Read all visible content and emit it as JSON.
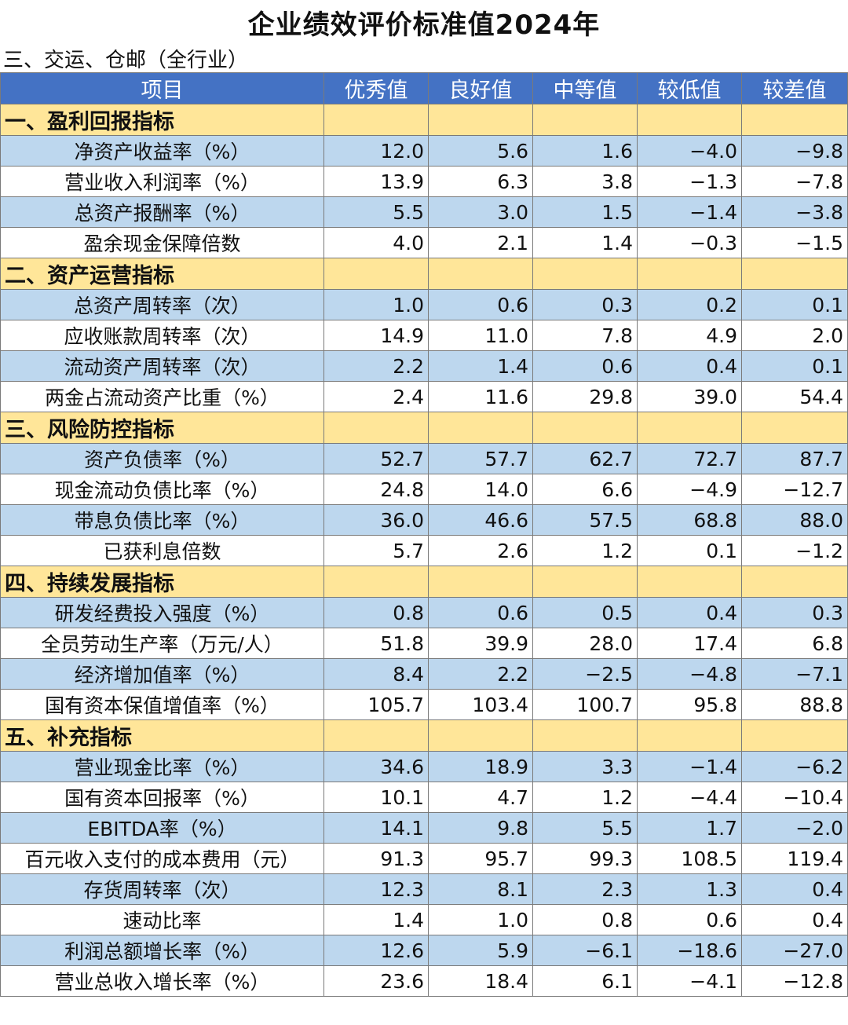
{
  "title": "企业绩效评价标准值2024年",
  "subtitle": "三、交运、仓邮（全行业）",
  "headers": [
    "项目",
    "优秀值",
    "良好值",
    "中等值",
    "较低值",
    "较差值"
  ],
  "sections": [
    {
      "label": "一、盈利回报指标",
      "rows": [
        {
          "name": "净资产收益率（%）",
          "values": [
            "12.0",
            "5.6",
            "1.6",
            "−4.0",
            "−9.8"
          ]
        },
        {
          "name": "营业收入利润率（%）",
          "values": [
            "13.9",
            "6.3",
            "3.8",
            "−1.3",
            "−7.8"
          ]
        },
        {
          "name": "总资产报酬率（%）",
          "values": [
            "5.5",
            "3.0",
            "1.5",
            "−1.4",
            "−3.8"
          ]
        },
        {
          "name": "盈余现金保障倍数",
          "values": [
            "4.0",
            "2.1",
            "1.4",
            "−0.3",
            "−1.5"
          ]
        }
      ]
    },
    {
      "label": "二、资产运营指标",
      "rows": [
        {
          "name": "总资产周转率（次）",
          "values": [
            "1.0",
            "0.6",
            "0.3",
            "0.2",
            "0.1"
          ]
        },
        {
          "name": "应收账款周转率（次）",
          "values": [
            "14.9",
            "11.0",
            "7.8",
            "4.9",
            "2.0"
          ]
        },
        {
          "name": "流动资产周转率（次）",
          "values": [
            "2.2",
            "1.4",
            "0.6",
            "0.4",
            "0.1"
          ]
        },
        {
          "name": "两金占流动资产比重（%）",
          "values": [
            "2.4",
            "11.6",
            "29.8",
            "39.0",
            "54.4"
          ]
        }
      ]
    },
    {
      "label": "三、风险防控指标",
      "rows": [
        {
          "name": "资产负债率（%）",
          "values": [
            "52.7",
            "57.7",
            "62.7",
            "72.7",
            "87.7"
          ]
        },
        {
          "name": "现金流动负债比率（%）",
          "values": [
            "24.8",
            "14.0",
            "6.6",
            "−4.9",
            "−12.7"
          ]
        },
        {
          "name": "带息负债比率（%）",
          "values": [
            "36.0",
            "46.6",
            "57.5",
            "68.8",
            "88.0"
          ]
        },
        {
          "name": "已获利息倍数",
          "values": [
            "5.7",
            "2.6",
            "1.2",
            "0.1",
            "−1.2"
          ]
        }
      ]
    },
    {
      "label": "四、持续发展指标",
      "rows": [
        {
          "name": "研发经费投入强度（%）",
          "values": [
            "0.8",
            "0.6",
            "0.5",
            "0.4",
            "0.3"
          ]
        },
        {
          "name": "全员劳动生产率（万元/人）",
          "values": [
            "51.8",
            "39.9",
            "28.0",
            "17.4",
            "6.8"
          ]
        },
        {
          "name": "经济增加值率（%）",
          "values": [
            "8.4",
            "2.2",
            "−2.5",
            "−4.8",
            "−7.1"
          ]
        },
        {
          "name": "国有资本保值增值率（%）",
          "values": [
            "105.7",
            "103.4",
            "100.7",
            "95.8",
            "88.8"
          ]
        }
      ]
    },
    {
      "label": "五、补充指标",
      "rows": [
        {
          "name": "营业现金比率（%）",
          "values": [
            "34.6",
            "18.9",
            "3.3",
            "−1.4",
            "−6.2"
          ]
        },
        {
          "name": "国有资本回报率（%）",
          "values": [
            "10.1",
            "4.7",
            "1.2",
            "−4.4",
            "−10.4"
          ]
        },
        {
          "name": "EBITDA率（%）",
          "values": [
            "14.1",
            "9.8",
            "5.5",
            "1.7",
            "−2.0"
          ]
        },
        {
          "name": "百元收入支付的成本费用（元）",
          "values": [
            "91.3",
            "95.7",
            "99.3",
            "108.5",
            "119.4"
          ]
        },
        {
          "name": "存货周转率（次）",
          "values": [
            "12.3",
            "8.1",
            "2.3",
            "1.3",
            "0.4"
          ]
        },
        {
          "name": "速动比率",
          "values": [
            "1.4",
            "1.0",
            "0.8",
            "0.6",
            "0.4"
          ]
        },
        {
          "name": "利润总额增长率（%）",
          "values": [
            "12.6",
            "5.9",
            "−6.1",
            "−18.6",
            "−27.0"
          ]
        },
        {
          "name": "营业总收入增长率（%）",
          "values": [
            "23.6",
            "18.4",
            "6.1",
            "−4.1",
            "−12.8"
          ]
        }
      ]
    }
  ]
}
